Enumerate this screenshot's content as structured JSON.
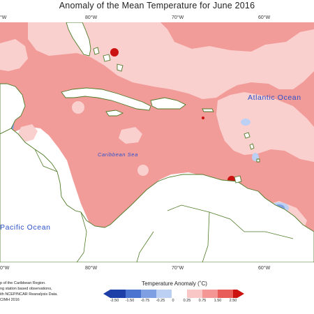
{
  "title": "Anomaly of the Mean Temperature for June 2016",
  "axis": {
    "top_ticks": [
      "80°W",
      "70°W",
      "60°W"
    ],
    "bottom_ticks": [
      "80°W",
      "70°W",
      "60°W"
    ],
    "left_edge_top": "°W",
    "left_edge_bottom": "0°W"
  },
  "labels": {
    "atlantic": "Atlantic Ocean",
    "caribbean": "Caribbean Sea",
    "pacific": "Pacific Ocean"
  },
  "credits": [
    "p of the Caribbean Region.",
    "ng station based observations,",
    "ith NCEP/NCAR Reanalysis Data.",
    "CIMH 2016"
  ],
  "legend": {
    "title": "Temperature Anomaly (˚C)",
    "labels": [
      "-2.50",
      "-1.50",
      "-0.75",
      "-0.25",
      "0",
      "0.25",
      "0.75",
      "1.50",
      "2.50"
    ],
    "colors": [
      "#1f3fa8",
      "#4b74d0",
      "#7ea0e3",
      "#bcd0f3",
      "#ffffff",
      "#f9c7c5",
      "#f39694",
      "#e85c5a",
      "#cc1111"
    ]
  },
  "colors": {
    "anomaly_base": "#f29c9a",
    "anomaly_light": "#fad0cf",
    "anomaly_strong": "#cc1111",
    "anomaly_cool": "#7ea0e3",
    "coast": "#4e7a27"
  }
}
